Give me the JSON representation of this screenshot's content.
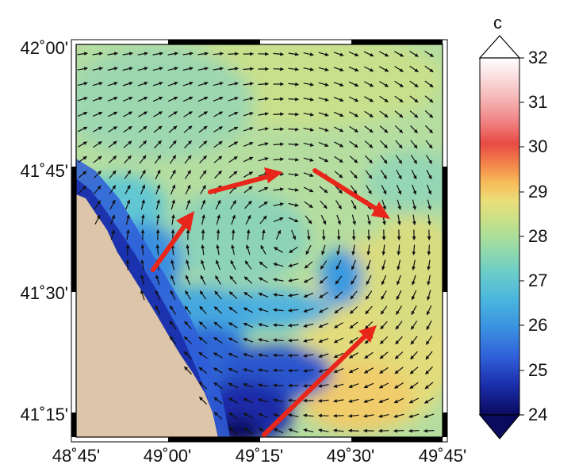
{
  "map": {
    "x_ticks": [
      "48˚45'",
      "49˚00'",
      "49˚15'",
      "49˚30'",
      "49˚45'"
    ],
    "y_ticks": [
      "42˚00'",
      "41˚45'",
      "41˚30'",
      "41˚15'"
    ],
    "lon_range": [
      48.75,
      49.75
    ],
    "lat_range": [
      41.2,
      42.0
    ],
    "land_color": "#dcc5a8",
    "arrow_color": "#111111",
    "highlight_arrow_color": "#e8271a"
  },
  "colorbar": {
    "unit": "c",
    "ticks": [
      "32",
      "31",
      "30",
      "29",
      "28",
      "27",
      "26",
      "25",
      "24"
    ],
    "range": [
      24,
      32
    ],
    "colors": [
      "#0a0a5e",
      "#1a2ca8",
      "#2f5ed8",
      "#3b8fe0",
      "#49b5df",
      "#6ccdc8",
      "#98dba6",
      "#c5e08a",
      "#ebde7a",
      "#f7bc5a",
      "#f2874a",
      "#e84a45",
      "#f08a8a",
      "#f6c0c0",
      "#fbe6e6",
      "#ffffff"
    ]
  },
  "highlight_arrows": [
    "current-arrow-1",
    "current-arrow-2",
    "current-arrow-3",
    "current-arrow-4",
    "current-arrow-5"
  ]
}
